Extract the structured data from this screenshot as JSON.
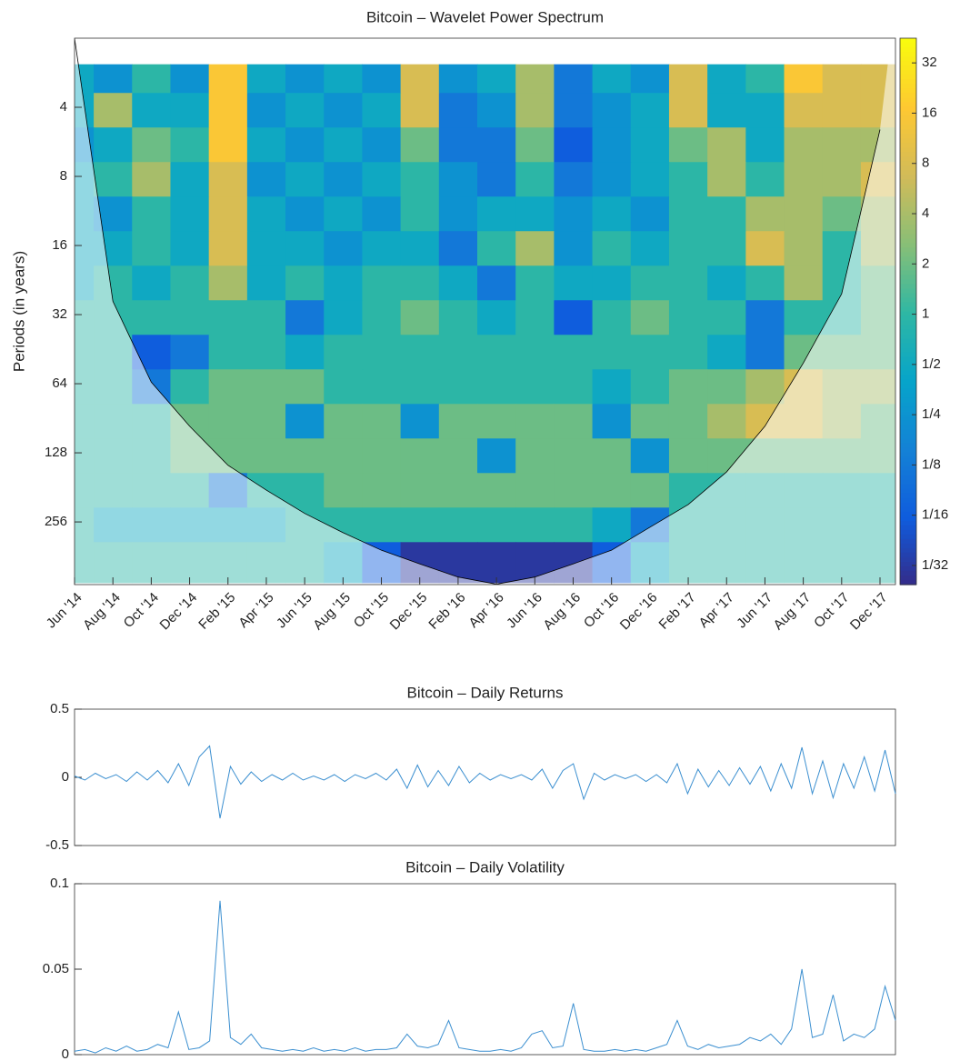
{
  "chart_data": [
    {
      "type": "heatmap",
      "title": "Bitcoin – Wavelet Power Spectrum",
      "y_label": "Periods (in years)",
      "categories": [
        "Jun '14",
        "Aug '14",
        "Oct '14",
        "Dec '14",
        "Feb '15",
        "Apr '15",
        "Jun '15",
        "Aug '15",
        "Oct '15",
        "Dec '15",
        "Feb '16",
        "Apr '16",
        "Jun '16",
        "Aug '16",
        "Oct '16",
        "Dec '16",
        "Feb '17",
        "Apr '17",
        "Jun '17",
        "Aug '17",
        "Oct '17",
        "Dec '17"
      ],
      "periods": [
        3,
        4,
        6,
        8,
        12,
        16,
        24,
        32,
        48,
        64,
        96,
        128,
        192,
        256,
        384
      ],
      "values": [
        [
          0.5,
          0.25,
          1,
          0.25,
          16,
          0.5,
          0.25,
          0.5,
          0.25,
          8,
          0.25,
          0.5,
          4,
          0.125,
          0.5,
          0.25,
          8,
          0.5,
          1,
          16,
          8,
          8
        ],
        [
          0.5,
          4,
          0.5,
          0.5,
          16,
          0.25,
          0.5,
          0.25,
          0.5,
          8,
          0.125,
          0.25,
          4,
          0.125,
          0.25,
          0.5,
          8,
          0.5,
          0.5,
          8,
          8,
          8
        ],
        [
          0.25,
          0.5,
          2,
          1,
          16,
          0.5,
          0.25,
          0.5,
          0.25,
          2,
          0.125,
          0.125,
          2,
          0.0625,
          0.25,
          0.5,
          2,
          4,
          0.5,
          4,
          4,
          4
        ],
        [
          0.5,
          1,
          4,
          0.5,
          8,
          0.25,
          0.5,
          0.25,
          0.5,
          1,
          0.25,
          0.125,
          1,
          0.125,
          0.25,
          0.5,
          1,
          4,
          1,
          4,
          4,
          8
        ],
        [
          0.5,
          0.25,
          1,
          0.5,
          8,
          0.5,
          0.25,
          0.5,
          0.25,
          1,
          0.25,
          0.5,
          0.5,
          0.25,
          0.5,
          0.25,
          1,
          1,
          4,
          4,
          2,
          4
        ],
        [
          0.5,
          0.5,
          1,
          0.5,
          8,
          0.5,
          0.5,
          0.25,
          0.5,
          0.5,
          0.125,
          1,
          4,
          0.25,
          1,
          0.5,
          1,
          1,
          8,
          4,
          1,
          4
        ],
        [
          0.5,
          1,
          0.5,
          1,
          4,
          0.5,
          1,
          0.5,
          1,
          1,
          0.5,
          0.125,
          1,
          0.5,
          0.5,
          1,
          1,
          0.5,
          1,
          4,
          1,
          2
        ],
        [
          1,
          1,
          1,
          1,
          1,
          1,
          0.125,
          0.5,
          1,
          2,
          1,
          0.5,
          1,
          0.0625,
          1,
          2,
          1,
          1,
          0.125,
          1,
          1,
          2
        ],
        [
          1,
          1,
          0.0625,
          0.125,
          1,
          1,
          0.5,
          1,
          1,
          1,
          1,
          1,
          1,
          1,
          1,
          1,
          1,
          0.5,
          0.125,
          2,
          2,
          2
        ],
        [
          1,
          1,
          0.125,
          1,
          2,
          2,
          2,
          1,
          1,
          1,
          1,
          1,
          1,
          1,
          0.5,
          1,
          2,
          2,
          4,
          8,
          4,
          4
        ],
        [
          1,
          1,
          1,
          2,
          2,
          2,
          0.25,
          2,
          2,
          0.25,
          2,
          2,
          2,
          2,
          0.25,
          2,
          2,
          4,
          8,
          8,
          4,
          2
        ],
        [
          1,
          1,
          1,
          2,
          2,
          2,
          2,
          2,
          2,
          2,
          2,
          0.25,
          2,
          2,
          2,
          0.25,
          2,
          2,
          2,
          2,
          2,
          2
        ],
        [
          1,
          1,
          1,
          1,
          0.125,
          1,
          1,
          2,
          2,
          2,
          2,
          2,
          2,
          2,
          2,
          2,
          1,
          1,
          1,
          1,
          1,
          1
        ],
        [
          1,
          0.5,
          0.5,
          0.5,
          0.5,
          0.5,
          1,
          1,
          1,
          1,
          1,
          1,
          1,
          1,
          0.5,
          0.125,
          1,
          1,
          1,
          1,
          1,
          1
        ],
        [
          1,
          1,
          1,
          1,
          1,
          1,
          1,
          0.5,
          0.0625,
          0.03125,
          0.03125,
          0.03125,
          0.03125,
          0.03125,
          0.0625,
          0.5,
          1,
          1,
          1,
          1,
          1,
          1
        ]
      ],
      "coi": [
        2,
        28,
        63,
        98,
        145,
        186,
        235,
        285,
        340,
        390,
        445,
        478,
        445,
        390,
        340,
        270,
        215,
        155,
        98,
        52,
        26,
        5
      ],
      "ylim": [
        2,
        480
      ],
      "yticks": [
        4,
        8,
        16,
        32,
        64,
        128,
        256
      ],
      "y_log": true,
      "y_reversed": true,
      "colormap": "parula",
      "clim": [
        0.024,
        45
      ],
      "cticks": [
        {
          "value": 0.03125,
          "label": "1/32"
        },
        {
          "value": 0.0625,
          "label": "1/16"
        },
        {
          "value": 0.125,
          "label": "1/8"
        },
        {
          "value": 0.25,
          "label": "1/4"
        },
        {
          "value": 0.5,
          "label": "1/2"
        },
        1,
        2,
        4,
        8,
        16,
        32
      ]
    },
    {
      "type": "line",
      "title": "Bitcoin – Daily Returns",
      "color": "#3b8fd0",
      "values": [
        0.01,
        -0.02,
        0.03,
        -0.01,
        0.02,
        -0.03,
        0.04,
        -0.02,
        0.05,
        -0.04,
        0.1,
        -0.06,
        0.15,
        0.23,
        -0.3,
        0.08,
        -0.05,
        0.04,
        -0.03,
        0.02,
        -0.02,
        0.03,
        -0.02,
        0.01,
        -0.02,
        0.02,
        -0.03,
        0.02,
        -0.01,
        0.03,
        -0.02,
        0.06,
        -0.08,
        0.09,
        -0.07,
        0.05,
        -0.06,
        0.08,
        -0.04,
        0.03,
        -0.02,
        0.02,
        -0.01,
        0.02,
        -0.02,
        0.06,
        -0.08,
        0.05,
        0.1,
        -0.16,
        0.03,
        -0.02,
        0.02,
        -0.01,
        0.02,
        -0.03,
        0.02,
        -0.04,
        0.1,
        -0.12,
        0.06,
        -0.07,
        0.05,
        -0.06,
        0.07,
        -0.05,
        0.08,
        -0.1,
        0.1,
        -0.08,
        0.22,
        -0.12,
        0.12,
        -0.15,
        0.1,
        -0.08,
        0.15,
        -0.1,
        0.2,
        -0.12
      ],
      "ylim": [
        -0.5,
        0.5
      ],
      "yticks": [
        -0.5,
        0,
        0.5
      ]
    },
    {
      "type": "line",
      "title": "Bitcoin – Daily Volatility",
      "color": "#3b8fd0",
      "values": [
        0.002,
        0.003,
        0.001,
        0.004,
        0.002,
        0.005,
        0.002,
        0.003,
        0.006,
        0.004,
        0.025,
        0.003,
        0.004,
        0.008,
        0.09,
        0.01,
        0.006,
        0.012,
        0.004,
        0.003,
        0.002,
        0.003,
        0.002,
        0.004,
        0.002,
        0.003,
        0.002,
        0.004,
        0.002,
        0.003,
        0.003,
        0.004,
        0.012,
        0.005,
        0.004,
        0.006,
        0.02,
        0.004,
        0.003,
        0.002,
        0.002,
        0.003,
        0.002,
        0.004,
        0.012,
        0.014,
        0.004,
        0.005,
        0.03,
        0.003,
        0.002,
        0.002,
        0.003,
        0.002,
        0.003,
        0.002,
        0.004,
        0.006,
        0.02,
        0.005,
        0.003,
        0.006,
        0.004,
        0.005,
        0.006,
        0.01,
        0.008,
        0.012,
        0.006,
        0.015,
        0.05,
        0.01,
        0.012,
        0.035,
        0.008,
        0.012,
        0.01,
        0.015,
        0.04,
        0.02
      ],
      "ylim": [
        0,
        0.1
      ],
      "yticks": [
        0,
        0.05,
        0.1
      ]
    }
  ]
}
